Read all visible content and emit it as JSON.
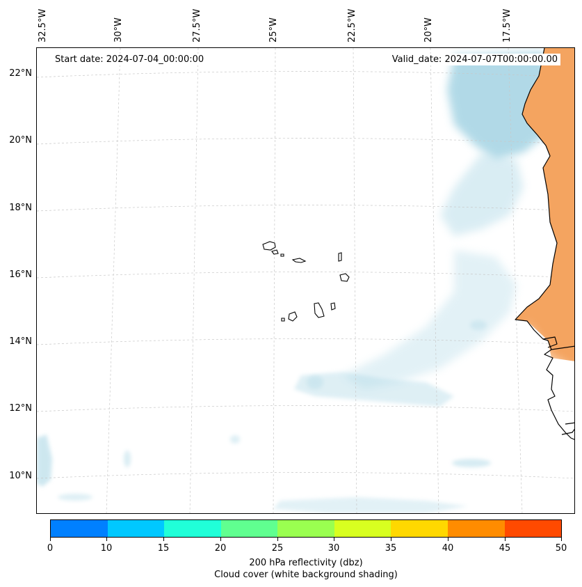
{
  "map": {
    "start_date": "Start date: 2024-07-04_00:00:00",
    "valid_date": "Valid_date: 2024-07-07T00:00:00.00",
    "lon_labels": [
      "32.5°W",
      "30°W",
      "27.5°W",
      "25°W",
      "22.5°W",
      "20°W",
      "17.5°W"
    ],
    "lat_labels": [
      "22°N",
      "20°N",
      "18°N",
      "16°N",
      "14°N",
      "12°N",
      "10°N"
    ],
    "land_color": "#f4a460",
    "cloud_color": "#add8e6",
    "coastline_color": "#000000",
    "gridline_color": "#c8c8c8"
  },
  "colorbar": {
    "ticks": [
      "0",
      "10",
      "15",
      "20",
      "25",
      "30",
      "35",
      "40",
      "45",
      "50"
    ],
    "colors": [
      "#0080ff",
      "#00c8ff",
      "#20ffd8",
      "#60ff90",
      "#9aff50",
      "#d8ff20",
      "#ffd800",
      "#ff8c00",
      "#ff4a00"
    ],
    "label_line1": "200 hPa reflectivity (dbz)",
    "label_line2": "Cloud cover (white background shading)"
  }
}
